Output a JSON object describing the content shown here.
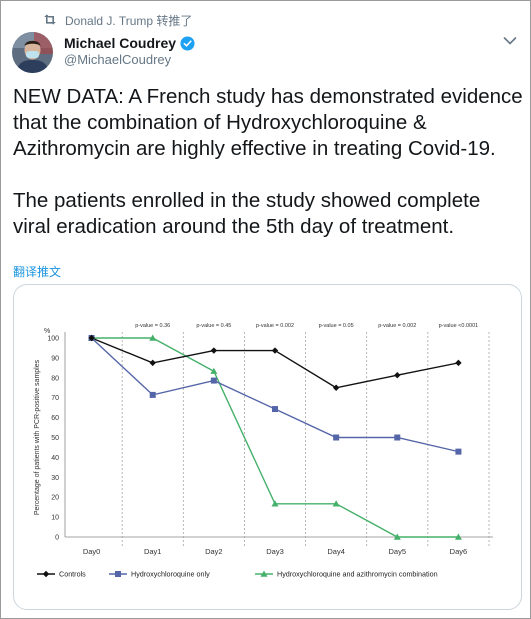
{
  "retweet": {
    "label": "Donald J. Trump 转推了",
    "icon": "retweet-icon"
  },
  "author": {
    "display_name": "Michael Coudrey",
    "handle": "@MichaelCoudrey",
    "verified": true
  },
  "tweet": {
    "paragraphs": [
      "NEW DATA: A French study has demonstrated evidence that the combination of Hydroxychloroquine & Azithromycin are highly effective in treating Covid-19.",
      "The patients enrolled in the study showed complete viral eradication around the 5th day of treatment."
    ],
    "translate_label": "翻译推文"
  },
  "colors": {
    "controls": "#111111",
    "hydroxy": "#5566a8",
    "combination": "#45b06a",
    "link": "#1b95e0"
  },
  "chart_data": {
    "type": "line",
    "ylabel": "Percentage of patients with PCR-positive samples",
    "y_unit_label": "%",
    "ylim": [
      0,
      100
    ],
    "yticks": [
      0,
      10,
      20,
      30,
      40,
      50,
      60,
      70,
      80,
      90,
      100
    ],
    "categories": [
      "Day0",
      "Day1",
      "Day2",
      "Day3",
      "Day4",
      "Day5",
      "Day6"
    ],
    "pvalues": [
      "p-value = 0.36",
      "p-value = 0.45",
      "p-value = 0.002",
      "p-value = 0.05",
      "p-value = 0.002",
      "p-value <0.0001"
    ],
    "series": [
      {
        "name": "Controls",
        "marker": "diamond",
        "values": [
          100,
          87.5,
          93.7,
          93.7,
          75,
          81.3,
          87.5
        ]
      },
      {
        "name": "Hydroxychloroquine only",
        "marker": "square",
        "values": [
          100,
          71.4,
          78.6,
          64.3,
          50,
          50,
          42.9
        ]
      },
      {
        "name": "Hydroxychloroquine and azithromycin combination",
        "marker": "triangle",
        "values": [
          100,
          100,
          83.3,
          16.7,
          16.7,
          0,
          0
        ]
      }
    ],
    "grid": "vertical dashed",
    "legend_position": "bottom"
  }
}
